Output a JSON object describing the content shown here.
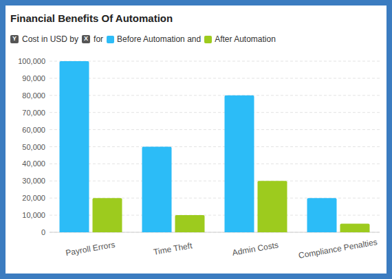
{
  "chart_data": {
    "type": "bar",
    "title": "Financial Benefits Of Automation",
    "ylabel": "Cost in USD",
    "annotations": [
      "Y",
      "by",
      "X",
      "for",
      "and"
    ],
    "categories": [
      "Payroll Errors",
      "Time Theft",
      "Admin Costs",
      "Compliance Penalties"
    ],
    "series": [
      {
        "name": "Before Automation",
        "color": "#2cbcf7",
        "values": [
          100000,
          50000,
          80000,
          20000
        ]
      },
      {
        "name": "After Automation",
        "color": "#9dcb1e",
        "values": [
          20000,
          10000,
          30000,
          5000
        ]
      }
    ],
    "ylim": [
      0,
      100000
    ],
    "yticks": [
      0,
      {
        "value": 10000,
        "label": "10,000"
      },
      {
        "value": 20000,
        "label": "20,000"
      },
      {
        "value": 30000,
        "label": "30,000"
      },
      {
        "value": 40000,
        "label": "40,000"
      },
      {
        "value": 50000,
        "label": "50,000"
      },
      {
        "value": 60000,
        "label": "60,000"
      },
      {
        "value": 70000,
        "label": "70,000"
      },
      {
        "value": 80000,
        "label": "80,000"
      },
      {
        "value": 90000,
        "label": "90,000"
      },
      {
        "value": 100000,
        "label": "100,000"
      }
    ],
    "grid": true
  }
}
